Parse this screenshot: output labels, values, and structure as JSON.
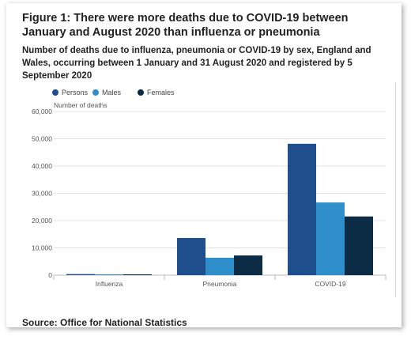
{
  "title": "Figure 1: There were more deaths due to COVID-19 between January and August 2020 than influenza or pneumonia",
  "subtitle": "Number of deaths due to influenza, pneumonia or COVID-19 by sex, England and Wales, occurring between 1 January and 31 August 2020 and registered by 5 September 2020",
  "source": "Source: Office for National Statistics",
  "colors": {
    "persons": "#1f4e8c",
    "males": "#2e8fcb",
    "females": "#0b2c44",
    "grid": "#e3e3e3",
    "axis": "#bbbbbb"
  },
  "chart_data": {
    "type": "bar",
    "categories": [
      "Influenza",
      "Pneumonia",
      "COVID-19"
    ],
    "series": [
      {
        "name": "Persons",
        "values": [
          394,
          13619,
          48168
        ]
      },
      {
        "name": "Males",
        "values": [
          208,
          6402,
          26651
        ]
      },
      {
        "name": "Females",
        "values": [
          186,
          7217,
          21517
        ]
      }
    ],
    "ylabel": "Number of deaths",
    "ylim": [
      0,
      60000
    ],
    "yticks": [
      0,
      10000,
      20000,
      30000,
      40000,
      50000,
      60000
    ],
    "ytick_labels": [
      "0",
      "10,000",
      "20,000",
      "30,000",
      "40,000",
      "50,000",
      "60,000"
    ],
    "grid": true,
    "legend": "top-left"
  }
}
